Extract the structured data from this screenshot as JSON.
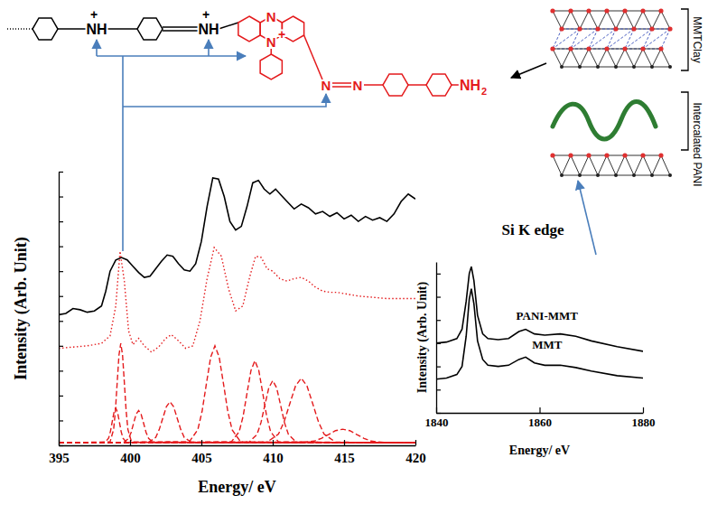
{
  "chart_data": [
    {
      "type": "line",
      "x_label": "Energy/ eV",
      "y_label": "Intensity (Arb. Unit)",
      "xlim": [
        395,
        420
      ],
      "xticks": [
        395,
        400,
        405,
        410,
        415,
        420
      ],
      "ylim": [
        0,
        11
      ],
      "yticks": [
        0,
        1,
        2,
        3,
        4,
        5,
        6,
        7,
        8,
        9,
        10,
        11
      ],
      "tick_labels": "x",
      "series": [
        {
          "color": "#000000",
          "line_style": "solid",
          "x": [
            395,
            395.5,
            396,
            396.5,
            397,
            397.5,
            398,
            398.3,
            398.6,
            399,
            399.4,
            399.8,
            400.2,
            400.6,
            401,
            401.4,
            401.8,
            402.2,
            402.6,
            403,
            403.4,
            403.8,
            404.2,
            404.6,
            405,
            405.4,
            405.8,
            406.2,
            406.6,
            407,
            407.4,
            407.8,
            408.2,
            408.6,
            409,
            409.4,
            409.8,
            410.2,
            410.6,
            411,
            411.5,
            412,
            412.5,
            413,
            413.5,
            414,
            414.5,
            415,
            415.5,
            416,
            416.5,
            417,
            417.5,
            418,
            418.5,
            419,
            419.5,
            420
          ],
          "values": [
            5.25,
            5.3,
            5.5,
            5.45,
            5.35,
            5.4,
            5.6,
            6.2,
            7.0,
            7.45,
            7.55,
            7.45,
            7.2,
            6.95,
            6.75,
            6.8,
            7.1,
            7.4,
            7.65,
            7.6,
            7.3,
            7.05,
            7.0,
            7.3,
            8.2,
            9.6,
            10.75,
            10.7,
            10.0,
            9.0,
            8.65,
            8.8,
            9.6,
            10.55,
            10.65,
            10.3,
            10.1,
            10.3,
            10.05,
            9.8,
            9.5,
            9.7,
            9.55,
            9.3,
            9.4,
            9.2,
            9.35,
            9.1,
            9.25,
            9.0,
            9.2,
            9.05,
            9.15,
            9.0,
            9.3,
            9.8,
            10.1,
            9.9
          ]
        },
        {
          "color": "#e41a1c",
          "line_style": "dotted",
          "x": [
            395,
            396,
            397,
            398,
            398.6,
            399,
            399.3,
            399.6,
            399.9,
            400.2,
            400.6,
            401,
            401.5,
            402,
            402.5,
            402.9,
            403.4,
            403.9,
            404.4,
            404.9,
            405.4,
            405.9,
            406.4,
            406.9,
            407.4,
            407.9,
            408.4,
            408.8,
            409.2,
            409.6,
            410,
            410.5,
            411,
            411.5,
            412,
            412.5,
            413,
            413.5,
            414,
            414.5,
            415,
            416,
            417,
            418,
            419,
            420
          ],
          "values": [
            3.9,
            3.95,
            4.0,
            4.1,
            4.4,
            5.6,
            7.8,
            6.6,
            4.6,
            4.05,
            4.3,
            4.0,
            3.75,
            3.95,
            4.3,
            4.45,
            4.2,
            3.9,
            4.0,
            5.0,
            6.7,
            7.95,
            7.6,
            6.3,
            5.4,
            5.6,
            6.8,
            7.6,
            7.55,
            7.1,
            7.0,
            6.7,
            6.6,
            6.7,
            6.75,
            6.6,
            6.35,
            6.2,
            6.15,
            6.15,
            6.1,
            6.0,
            5.95,
            5.9,
            5.9,
            5.9
          ]
        },
        {
          "color": "#e41a1c",
          "line_style": "dashed",
          "x": [
            395,
            398.25,
            398.5,
            398.625,
            398.75,
            398.875,
            399.0,
            399.125,
            399.25,
            399.375,
            399.5,
            399.75,
            420
          ],
          "values": [
            0.1,
            0.12,
            0.29,
            0.56,
            0.95,
            1.33,
            1.5,
            1.33,
            0.95,
            0.56,
            0.29,
            0.12,
            0.1
          ]
        },
        {
          "color": "#e41a1c",
          "line_style": "dashed",
          "x": [
            395,
            398.6,
            398.85,
            398.975,
            399.1,
            399.225,
            399.35,
            399.475,
            399.6,
            399.725,
            399.85,
            400.1,
            420
          ],
          "values": [
            0.1,
            0.14,
            0.64,
            1.4,
            2.53,
            3.63,
            4.1,
            3.63,
            2.53,
            1.4,
            0.64,
            0.14,
            0.1
          ]
        },
        {
          "color": "#e41a1c",
          "line_style": "dashed",
          "x": [
            395,
            399.55,
            399.9,
            400.075,
            400.25,
            400.425,
            400.6,
            400.775,
            400.95,
            401.125,
            401.3,
            401.65,
            420
          ],
          "values": [
            0.1,
            0.11,
            0.28,
            0.52,
            0.89,
            1.25,
            1.4,
            1.25,
            0.89,
            0.52,
            0.28,
            0.11,
            0.1
          ]
        },
        {
          "color": "#e41a1c",
          "line_style": "dashed",
          "x": [
            395,
            401.3,
            401.8,
            402.05,
            402.3,
            402.55,
            402.8,
            403.05,
            403.3,
            403.55,
            403.8,
            404.3,
            420
          ],
          "values": [
            0.1,
            0.12,
            0.32,
            0.64,
            1.1,
            1.56,
            1.75,
            1.56,
            1.1,
            0.64,
            0.32,
            0.12,
            0.1
          ]
        },
        {
          "color": "#e41a1c",
          "line_style": "dashed",
          "x": [
            395,
            404.15,
            404.75,
            405.05,
            405.35,
            405.65,
            405.95,
            406.25,
            406.55,
            406.85,
            407.15,
            407.75,
            420
          ],
          "values": [
            0.1,
            0.14,
            0.63,
            1.37,
            2.47,
            3.54,
            4.0,
            3.54,
            2.47,
            1.37,
            0.63,
            0.14,
            0.1
          ]
        },
        {
          "color": "#e41a1c",
          "line_style": "dashed",
          "x": [
            395,
            407.1,
            407.65,
            407.925,
            408.2,
            408.475,
            408.75,
            409.025,
            409.3,
            409.575,
            409.85,
            410.4,
            420
          ],
          "values": [
            0.1,
            0.14,
            0.55,
            1.17,
            2.1,
            3.01,
            3.4,
            3.01,
            2.1,
            1.17,
            0.55,
            0.14,
            0.1
          ]
        },
        {
          "color": "#e41a1c",
          "line_style": "dashed",
          "x": [
            395,
            408.35,
            408.9,
            409.175,
            409.45,
            409.725,
            410.0,
            410.275,
            410.55,
            410.825,
            411.1,
            411.65,
            420
          ],
          "values": [
            0.1,
            0.13,
            0.44,
            0.91,
            1.62,
            2.31,
            2.6,
            2.31,
            1.62,
            0.91,
            0.44,
            0.13,
            0.1
          ]
        },
        {
          "color": "#e41a1c",
          "line_style": "dashed",
          "x": [
            395,
            409.6,
            410.4,
            410.8,
            411.2,
            411.6,
            412.0,
            412.4,
            412.8,
            413.2,
            413.6,
            414.4,
            420
          ],
          "values": [
            0.1,
            0.13,
            0.45,
            0.95,
            1.68,
            2.39,
            2.7,
            2.39,
            1.68,
            0.95,
            0.45,
            0.13,
            0.1
          ]
        },
        {
          "color": "#e41a1c",
          "line_style": "dashed",
          "x": [
            395,
            411.9,
            412.9,
            413.4,
            413.9,
            414.4,
            414.9,
            415.4,
            415.9,
            416.4,
            416.9,
            417.9,
            420
          ],
          "values": [
            0.1,
            0.11,
            0.17,
            0.28,
            0.43,
            0.59,
            0.65,
            0.59,
            0.43,
            0.28,
            0.17,
            0.11,
            0.1
          ]
        }
      ]
    },
    {
      "type": "line",
      "title": "Si K edge",
      "x_label": "Energy/ eV",
      "y_label": "Intensity (Arb. Unit)",
      "xlim": [
        1840,
        1880
      ],
      "xticks": [
        1840,
        1860,
        1880
      ],
      "ylim": [
        0,
        6.5
      ],
      "yticks": [
        0,
        1,
        2,
        3,
        4,
        5,
        6
      ],
      "tick_labels": "x",
      "series": [
        {
          "name": "PANI-MMT",
          "color": "#000000",
          "line_style": "solid",
          "x": [
            1840,
            1842,
            1844,
            1845,
            1845.8,
            1846.4,
            1846.8,
            1847.3,
            1848,
            1849,
            1850,
            1852,
            1854,
            1856,
            1857.3,
            1859,
            1861,
            1864,
            1867,
            1870,
            1875,
            1880
          ],
          "values": [
            3.0,
            3.05,
            3.2,
            3.6,
            4.8,
            6.0,
            6.3,
            5.7,
            4.2,
            3.4,
            3.2,
            3.15,
            3.2,
            3.5,
            3.6,
            3.4,
            3.35,
            3.4,
            3.3,
            3.1,
            2.85,
            2.65
          ]
        },
        {
          "name": "MMT",
          "color": "#000000",
          "line_style": "solid",
          "x": [
            1840,
            1842,
            1844,
            1845,
            1845.8,
            1846.4,
            1846.8,
            1847.3,
            1848,
            1849,
            1850,
            1852,
            1854,
            1856,
            1857.3,
            1859,
            1861,
            1864,
            1867,
            1870,
            1875,
            1880
          ],
          "values": [
            1.45,
            1.5,
            1.65,
            2.0,
            3.3,
            4.9,
            5.35,
            4.7,
            3.1,
            2.3,
            2.05,
            2.0,
            2.05,
            2.3,
            2.4,
            2.15,
            2.05,
            2.05,
            1.95,
            1.8,
            1.6,
            1.5
          ]
        }
      ]
    }
  ],
  "diagram": {
    "molecule_labels": [
      "NH",
      "+",
      "NH",
      "+",
      "N",
      "N",
      "+",
      "N",
      "N",
      "NH",
      "2"
    ],
    "clay_labels": [
      "MMTClay",
      "Intercalated PANI"
    ]
  }
}
